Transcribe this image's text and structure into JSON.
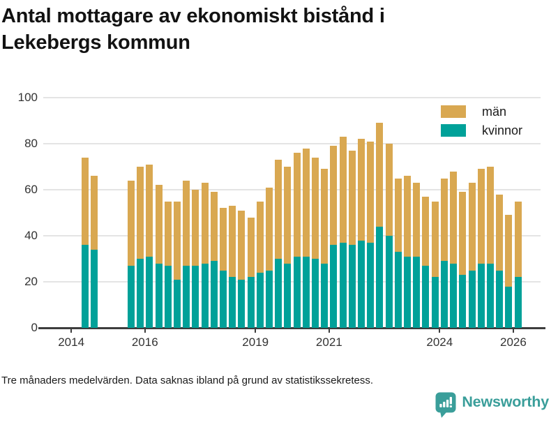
{
  "title": {
    "line1": "Antal mottagare av ekonomiskt bistånd i",
    "line2": "Lekebergs kommun"
  },
  "legend": {
    "items": [
      {
        "label": "män",
        "color_key": "men"
      },
      {
        "label": "kvinnor",
        "color_key": "women"
      }
    ]
  },
  "colors": {
    "men": "#d9a851",
    "women": "#00a199",
    "grid": "#e4e4e4",
    "axis": "#3d3d3d",
    "logo": "#3a9e9a"
  },
  "footer": {
    "note": "Tre månaders medelvärden. Data saknas ibland på grund av statistikssekretess.",
    "brand": "Newsworthy"
  },
  "chart_data": {
    "type": "bar",
    "stacked": true,
    "title": "Antal mottagare av ekonomiskt bistånd i Lekebergs kommun",
    "xlabel": "",
    "ylabel": "",
    "grid": "horizontal",
    "legend_position": "top-right",
    "note": "Bars are 3-month averages; gap in late 2014 / early 2015 where data is withheld for statistical secrecy",
    "y_axis": {
      "ticks": [
        0,
        20,
        40,
        60,
        80,
        100
      ],
      "range": [
        0,
        100
      ]
    },
    "x_axis": {
      "ticks": [
        2014,
        2016,
        2019,
        2021,
        2024,
        2026
      ],
      "range": [
        2013.24,
        2026.74
      ]
    },
    "x": [
      "2014-05",
      "2014-08",
      "2015-08",
      "2015-11",
      "2016-02",
      "2016-05",
      "2016-08",
      "2016-11",
      "2017-02",
      "2017-05",
      "2017-08",
      "2017-11",
      "2018-02",
      "2018-05",
      "2018-08",
      "2018-11",
      "2019-02",
      "2019-05",
      "2019-08",
      "2019-11",
      "2020-02",
      "2020-05",
      "2020-08",
      "2020-11",
      "2021-02",
      "2021-05",
      "2021-08",
      "2021-11",
      "2022-02",
      "2022-05",
      "2022-08",
      "2022-11",
      "2023-02",
      "2023-05",
      "2023-08",
      "2023-11",
      "2024-02",
      "2024-05",
      "2024-08",
      "2024-11",
      "2025-02",
      "2025-05",
      "2025-08",
      "2025-11",
      "2026-02"
    ],
    "series": [
      {
        "name": "kvinnor",
        "color_key": "women",
        "values": [
          36,
          34,
          27,
          30,
          31,
          28,
          27,
          21,
          27,
          27,
          28,
          29,
          25,
          22,
          21,
          22,
          24,
          25,
          30,
          28,
          31,
          31,
          30,
          28,
          36,
          37,
          36,
          38,
          37,
          44,
          40,
          33,
          31,
          31,
          27,
          22,
          29,
          28,
          23,
          25,
          28,
          28,
          25,
          18,
          22
        ]
      },
      {
        "name": "män",
        "color_key": "men",
        "values": [
          38,
          32,
          37,
          40,
          40,
          34,
          28,
          34,
          37,
          33,
          35,
          30,
          27,
          31,
          30,
          26,
          31,
          36,
          43,
          42,
          45,
          47,
          44,
          41,
          43,
          46,
          41,
          44,
          44,
          45,
          40,
          32,
          35,
          32,
          30,
          33,
          36,
          40,
          36,
          38,
          41,
          42,
          33,
          31,
          33
        ]
      }
    ]
  }
}
